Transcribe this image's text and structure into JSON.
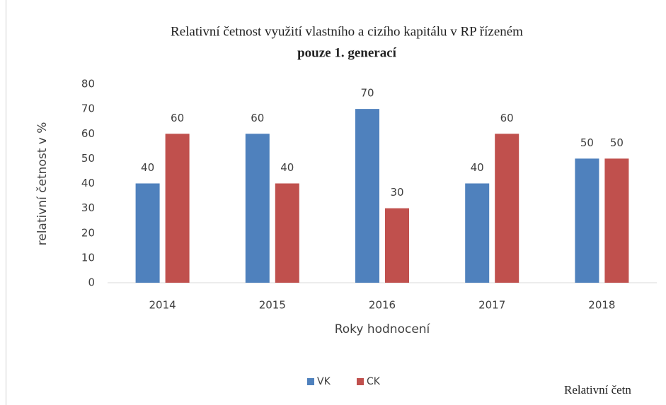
{
  "chart_data": {
    "type": "bar",
    "title": "Relativní četnost využití vlastního a cizího kapitálu v RP řízeném",
    "subtitle": "pouze 1. generací",
    "x_label": "Roky hodnocení",
    "y_label": "relativní četnost v %",
    "categories": [
      "2014",
      "2015",
      "2016",
      "2017",
      "2018"
    ],
    "series": [
      {
        "name": "VK",
        "color": "#4f81bd",
        "values": [
          40,
          60,
          70,
          40,
          50
        ]
      },
      {
        "name": "CK",
        "color": "#c0504d",
        "values": [
          60,
          40,
          30,
          60,
          50
        ]
      }
    ],
    "ylim": [
      0,
      80
    ],
    "yticks": [
      0,
      10,
      20,
      30,
      40,
      50,
      60,
      70,
      80
    ],
    "grid": false,
    "legend": "bottom",
    "annotation": "Relativní četn"
  }
}
